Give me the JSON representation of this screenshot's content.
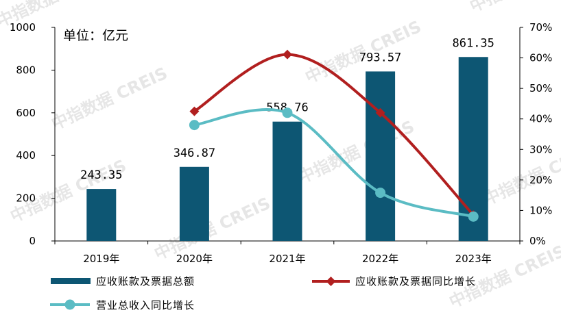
{
  "chart_data": {
    "type": "bar",
    "unit_label": "单位：亿元",
    "categories": [
      "2019年",
      "2020年",
      "2021年",
      "2022年",
      "2023年"
    ],
    "series": [
      {
        "name": "应收账款及票据总额",
        "kind": "bar",
        "axis": "left",
        "values": [
          243.35,
          346.87,
          558.76,
          793.57,
          861.35
        ],
        "data_labels": [
          "243.35",
          "346.87",
          "558.76",
          "793.57",
          "861.35"
        ],
        "color": "#0d5673"
      },
      {
        "name": "应收账款及票据同比增长",
        "kind": "line",
        "axis": "right",
        "values": [
          null,
          42.5,
          61.1,
          42.0,
          8.5
        ],
        "color": "#b11f1f",
        "marker": "diamond"
      },
      {
        "name": "营业总收入同比增长",
        "kind": "line",
        "axis": "right",
        "values": [
          null,
          38.0,
          42.0,
          15.8,
          8.0
        ],
        "color": "#5bbcc4",
        "marker": "circle"
      }
    ],
    "y_left": {
      "min": 0,
      "max": 1000,
      "ticks": [
        "0",
        "200",
        "400",
        "600",
        "800",
        "1000"
      ]
    },
    "y_right": {
      "min": 0,
      "max": 70,
      "ticks": [
        "0%",
        "10%",
        "20%",
        "30%",
        "40%",
        "50%",
        "60%",
        "70%"
      ]
    },
    "grid": false,
    "legend": "bottom"
  },
  "watermark": "中指数据 CREIS"
}
